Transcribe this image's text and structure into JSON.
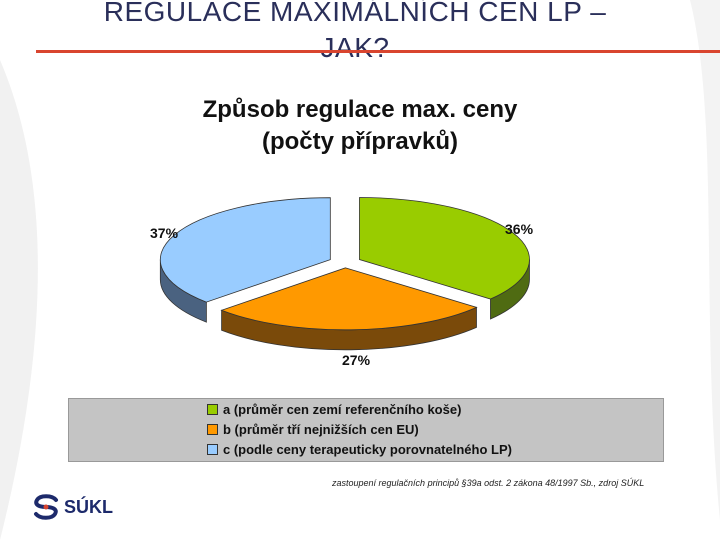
{
  "slide": {
    "title_line1": "REGULACE MAXIMÁLNÍCH CEN LP –",
    "title_line2": "JAK?",
    "source_note": "zastoupení regulačních principů §39a odst. 2 zákona 48/1997 Sb., zdroj SÚKL",
    "logo_text": "SÚKL"
  },
  "chart_data": {
    "type": "pie",
    "title_line1": "Způsob regulace max. ceny",
    "title_line2": "(počty přípravků)",
    "slices": [
      {
        "label": "a (průměr cen zemí referenčního koše)",
        "value": 36,
        "value_label": "36%",
        "color": "#99cc00",
        "side_color": "#4f6b12"
      },
      {
        "label": "b (průměr tří nejnižších cen EU)",
        "value": 27,
        "value_label": "27%",
        "color": "#ff9900",
        "side_color": "#7a4a0a"
      },
      {
        "label": "c (podle ceny terapeuticky porovnatelného LP)",
        "value": 37,
        "value_label": "37%",
        "color": "#99ccff",
        "side_color": "#4a6280"
      }
    ],
    "exploded": true,
    "style": "3d",
    "legend_position": "bottom"
  }
}
